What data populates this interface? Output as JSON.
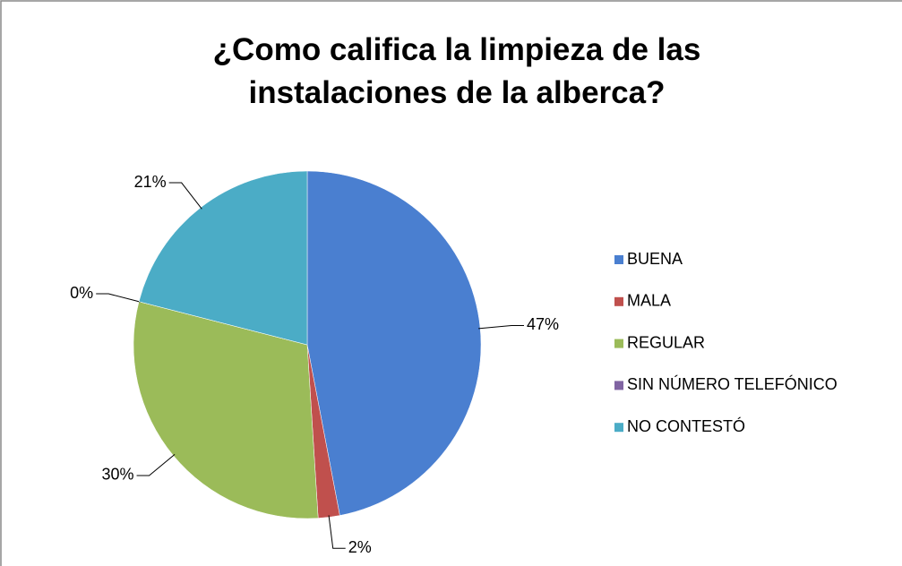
{
  "chart_data": {
    "type": "pie",
    "title": "¿Como califica la limpieza de las instalaciones de la alberca?",
    "categories": [
      "BUENA",
      "MALA",
      "REGULAR",
      "SIN NÚMERO TELEFÓNICO",
      "NO CONTESTÓ"
    ],
    "values": [
      47,
      2,
      30,
      0,
      21
    ],
    "value_labels": [
      "47%",
      "2%",
      "30%",
      "0%",
      "21%"
    ],
    "colors": [
      "#4a7fd0",
      "#c0504d",
      "#9bbb59",
      "#8064a2",
      "#4bacc6"
    ],
    "legend": "right"
  }
}
